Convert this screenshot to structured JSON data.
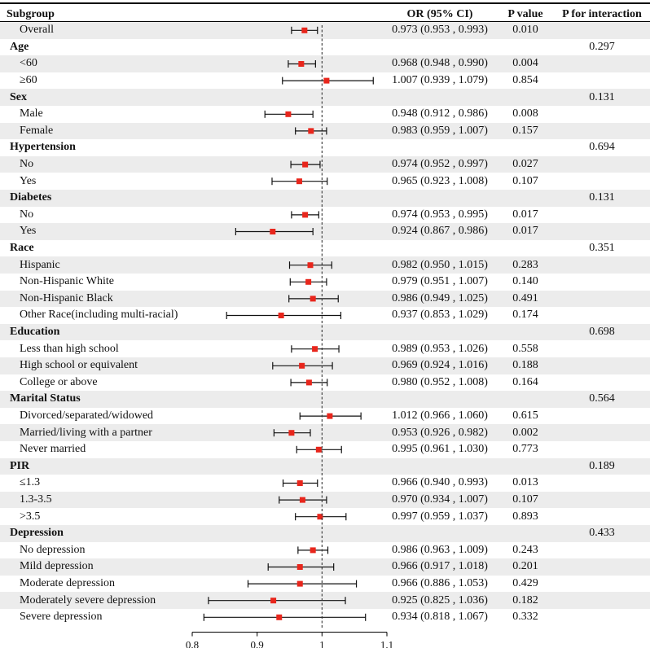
{
  "header": {
    "subgroup": "Subgroup",
    "or_ci": "OR (95% CI)",
    "p_value": "P value",
    "p_interaction": "P for interaction"
  },
  "chart_data": {
    "type": "forest",
    "title": "",
    "xlabel": "",
    "xlim": [
      0.8,
      1.1
    ],
    "xticks": [
      0.8,
      0.9,
      1,
      1.1
    ],
    "xtick_labels": [
      "0.8",
      "0.9",
      "1",
      "1.1"
    ],
    "reference_line": 1,
    "colors": {
      "point": "#e8261c",
      "line": "#111111",
      "shade": "#ececec"
    },
    "rows": [
      {
        "kind": "item",
        "label": "Overall",
        "or": 0.973,
        "lo": 0.953,
        "hi": 0.993,
        "text": "0.973 (0.953 , 0.993)",
        "p": "0.010",
        "pint": ""
      },
      {
        "kind": "group",
        "label": "Age",
        "pint": "0.297"
      },
      {
        "kind": "item",
        "label": "<60",
        "or": 0.968,
        "lo": 0.948,
        "hi": 0.99,
        "text": "0.968 (0.948 , 0.990)",
        "p": "0.004",
        "pint": ""
      },
      {
        "kind": "item",
        "label": "≥60",
        "or": 1.007,
        "lo": 0.939,
        "hi": 1.079,
        "text": "1.007 (0.939 , 1.079)",
        "p": "0.854",
        "pint": ""
      },
      {
        "kind": "group",
        "label": "Sex",
        "pint": "0.131"
      },
      {
        "kind": "item",
        "label": "Male",
        "or": 0.948,
        "lo": 0.912,
        "hi": 0.986,
        "text": "0.948 (0.912 , 0.986)",
        "p": "0.008",
        "pint": ""
      },
      {
        "kind": "item",
        "label": "Female",
        "or": 0.983,
        "lo": 0.959,
        "hi": 1.007,
        "text": "0.983 (0.959 , 1.007)",
        "p": "0.157",
        "pint": ""
      },
      {
        "kind": "group",
        "label": "Hypertension",
        "pint": "0.694"
      },
      {
        "kind": "item",
        "label": "No",
        "or": 0.974,
        "lo": 0.952,
        "hi": 0.997,
        "text": "0.974 (0.952 , 0.997)",
        "p": "0.027",
        "pint": ""
      },
      {
        "kind": "item",
        "label": "Yes",
        "or": 0.965,
        "lo": 0.923,
        "hi": 1.008,
        "text": "0.965 (0.923 , 1.008)",
        "p": "0.107",
        "pint": ""
      },
      {
        "kind": "group",
        "label": "Diabetes",
        "pint": "0.131"
      },
      {
        "kind": "item",
        "label": "No",
        "or": 0.974,
        "lo": 0.953,
        "hi": 0.995,
        "text": "0.974 (0.953 , 0.995)",
        "p": "0.017",
        "pint": ""
      },
      {
        "kind": "item",
        "label": "Yes",
        "or": 0.924,
        "lo": 0.867,
        "hi": 0.986,
        "text": "0.924 (0.867 , 0.986)",
        "p": "0.017",
        "pint": ""
      },
      {
        "kind": "group",
        "label": "Race",
        "pint": "0.351"
      },
      {
        "kind": "item",
        "label": "Hispanic",
        "or": 0.982,
        "lo": 0.95,
        "hi": 1.015,
        "text": "0.982 (0.950 , 1.015)",
        "p": "0.283",
        "pint": ""
      },
      {
        "kind": "item",
        "label": "Non-Hispanic White",
        "or": 0.979,
        "lo": 0.951,
        "hi": 1.007,
        "text": "0.979 (0.951 , 1.007)",
        "p": "0.140",
        "pint": ""
      },
      {
        "kind": "item",
        "label": "Non-Hispanic Black",
        "or": 0.986,
        "lo": 0.949,
        "hi": 1.025,
        "text": "0.986 (0.949 , 1.025)",
        "p": "0.491",
        "pint": ""
      },
      {
        "kind": "item",
        "label": "Other Race(including multi-racial)",
        "or": 0.937,
        "lo": 0.853,
        "hi": 1.029,
        "text": "0.937 (0.853 , 1.029)",
        "p": "0.174",
        "pint": ""
      },
      {
        "kind": "group",
        "label": "Education",
        "pint": "0.698"
      },
      {
        "kind": "item",
        "label": "Less than high school",
        "or": 0.989,
        "lo": 0.953,
        "hi": 1.026,
        "text": "0.989 (0.953 , 1.026)",
        "p": "0.558",
        "pint": ""
      },
      {
        "kind": "item",
        "label": "High school or equivalent",
        "or": 0.969,
        "lo": 0.924,
        "hi": 1.016,
        "text": "0.969 (0.924 , 1.016)",
        "p": "0.188",
        "pint": ""
      },
      {
        "kind": "item",
        "label": "College or above",
        "or": 0.98,
        "lo": 0.952,
        "hi": 1.008,
        "text": "0.980 (0.952 , 1.008)",
        "p": "0.164",
        "pint": ""
      },
      {
        "kind": "group",
        "label": "Marital Status",
        "pint": "0.564"
      },
      {
        "kind": "item",
        "label": "Divorced/separated/widowed",
        "or": 1.012,
        "lo": 0.966,
        "hi": 1.06,
        "text": "1.012 (0.966 , 1.060)",
        "p": "0.615",
        "pint": ""
      },
      {
        "kind": "item",
        "label": "Married/living with a partner",
        "or": 0.953,
        "lo": 0.926,
        "hi": 0.982,
        "text": "0.953 (0.926 , 0.982)",
        "p": "0.002",
        "pint": ""
      },
      {
        "kind": "item",
        "label": "Never married",
        "or": 0.995,
        "lo": 0.961,
        "hi": 1.03,
        "text": "0.995 (0.961 , 1.030)",
        "p": "0.773",
        "pint": ""
      },
      {
        "kind": "group",
        "label": "PIR",
        "pint": "0.189"
      },
      {
        "kind": "item",
        "label": "≤1.3",
        "or": 0.966,
        "lo": 0.94,
        "hi": 0.993,
        "text": "0.966 (0.940 , 0.993)",
        "p": "0.013",
        "pint": ""
      },
      {
        "kind": "item",
        "label": "1.3-3.5",
        "or": 0.97,
        "lo": 0.934,
        "hi": 1.007,
        "text": "0.970 (0.934 , 1.007)",
        "p": "0.107",
        "pint": ""
      },
      {
        "kind": "item",
        "label": ">3.5",
        "or": 0.997,
        "lo": 0.959,
        "hi": 1.037,
        "text": "0.997 (0.959 , 1.037)",
        "p": "0.893",
        "pint": ""
      },
      {
        "kind": "group",
        "label": "Depression",
        "pint": "0.433"
      },
      {
        "kind": "item",
        "label": "No depression",
        "or": 0.986,
        "lo": 0.963,
        "hi": 1.009,
        "text": "0.986 (0.963 , 1.009)",
        "p": "0.243",
        "pint": ""
      },
      {
        "kind": "item",
        "label": "Mild depression",
        "or": 0.966,
        "lo": 0.917,
        "hi": 1.018,
        "text": "0.966 (0.917 , 1.018)",
        "p": "0.201",
        "pint": ""
      },
      {
        "kind": "item",
        "label": "Moderate depression",
        "or": 0.966,
        "lo": 0.886,
        "hi": 1.053,
        "text": "0.966 (0.886 , 1.053)",
        "p": "0.429",
        "pint": ""
      },
      {
        "kind": "item",
        "label": "Moderately severe depression",
        "or": 0.925,
        "lo": 0.825,
        "hi": 1.036,
        "text": "0.925 (0.825 , 1.036)",
        "p": "0.182",
        "pint": ""
      },
      {
        "kind": "item",
        "label": "Severe depression",
        "or": 0.934,
        "lo": 0.818,
        "hi": 1.067,
        "text": "0.934 (0.818 , 1.067)",
        "p": "0.332",
        "pint": ""
      }
    ]
  }
}
